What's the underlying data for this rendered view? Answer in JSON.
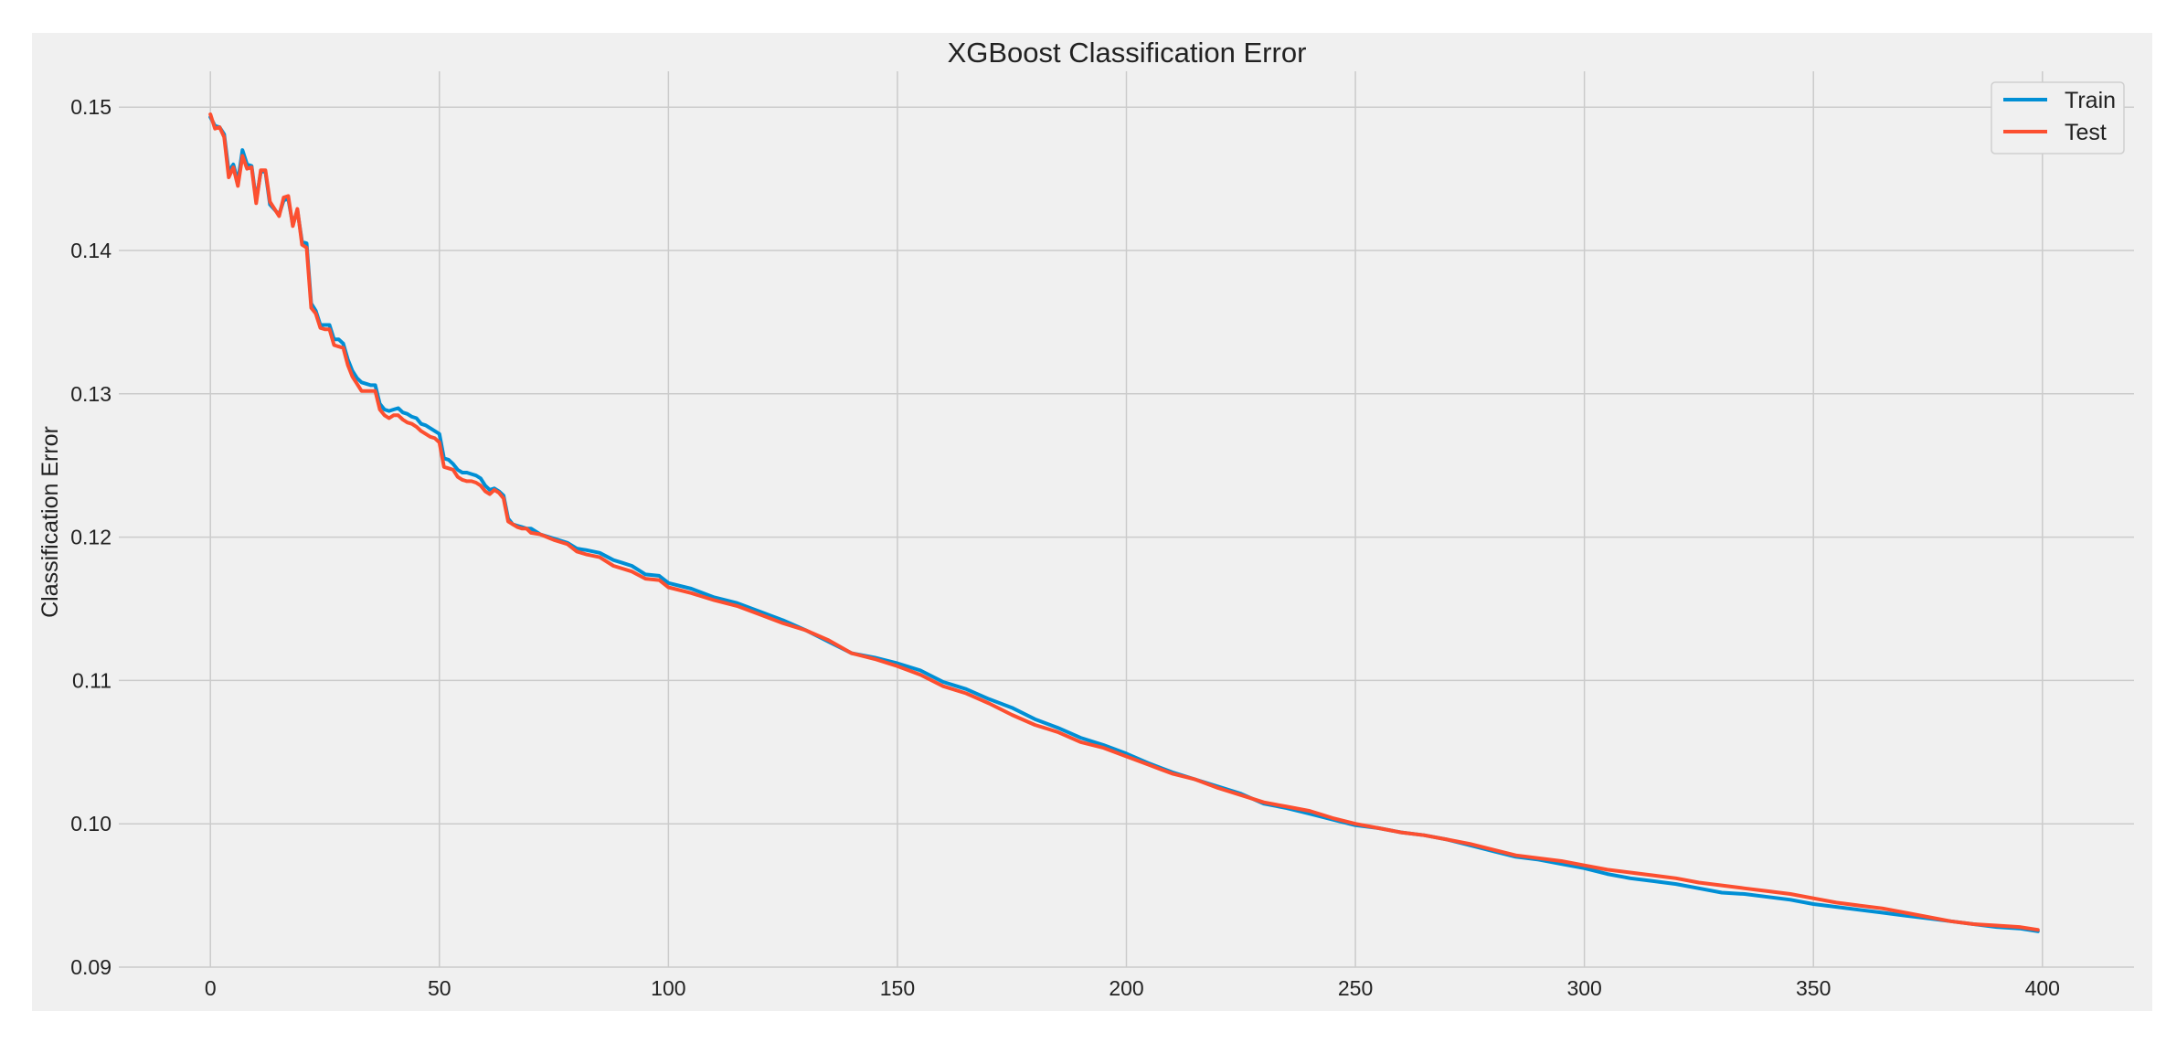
{
  "chart_data": {
    "type": "line",
    "title": "XGBoost Classification Error",
    "xlabel": "",
    "ylabel": "Classification Error",
    "xlim": [
      -20,
      420
    ],
    "ylim": [
      0.09,
      0.1525
    ],
    "x_ticks": [
      0,
      50,
      100,
      150,
      200,
      250,
      300,
      350,
      400
    ],
    "y_ticks": [
      0.09,
      0.1,
      0.11,
      0.12,
      0.13,
      0.14,
      0.15
    ],
    "x_tick_labels": [
      "0",
      "50",
      "100",
      "150",
      "200",
      "250",
      "300",
      "350",
      "400"
    ],
    "y_tick_labels": [
      "0.09",
      "0.10",
      "0.11",
      "0.12",
      "0.13",
      "0.14",
      "0.15"
    ],
    "grid": true,
    "legend_position": "top-right",
    "series": [
      {
        "name": "Train",
        "color": "#008fd5",
        "x": [
          0,
          1,
          2,
          3,
          4,
          5,
          6,
          7,
          8,
          9,
          10,
          11,
          12,
          13,
          15,
          16,
          17,
          18,
          19,
          20,
          21,
          22,
          23,
          24,
          25,
          26,
          27,
          28,
          29,
          30,
          31,
          32,
          33,
          34,
          35,
          36,
          37,
          38,
          39,
          40,
          41,
          42,
          43,
          44,
          45,
          46,
          47,
          48,
          49,
          50,
          51,
          52,
          53,
          54,
          55,
          56,
          57,
          58,
          59,
          60,
          61,
          62,
          63,
          64,
          65,
          66,
          67,
          68,
          69,
          70,
          72,
          75,
          78,
          80,
          82,
          85,
          88,
          90,
          92,
          95,
          98,
          100,
          105,
          110,
          115,
          120,
          125,
          130,
          135,
          140,
          145,
          150,
          155,
          160,
          165,
          170,
          175,
          180,
          185,
          190,
          195,
          200,
          205,
          210,
          215,
          220,
          225,
          230,
          235,
          240,
          245,
          250,
          255,
          260,
          265,
          270,
          275,
          280,
          285,
          290,
          295,
          300,
          305,
          310,
          315,
          320,
          325,
          330,
          335,
          340,
          345,
          350,
          355,
          360,
          365,
          370,
          375,
          380,
          385,
          390,
          395,
          399
        ],
        "y": [
          0.1493,
          0.1487,
          0.1486,
          0.1481,
          0.1455,
          0.146,
          0.1448,
          0.147,
          0.146,
          0.1459,
          0.1435,
          0.1455,
          0.1455,
          0.1432,
          0.1425,
          0.1435,
          0.1436,
          0.1418,
          0.1428,
          0.1406,
          0.1405,
          0.1363,
          0.1358,
          0.1348,
          0.1348,
          0.1348,
          0.1338,
          0.1338,
          0.1335,
          0.1324,
          0.1316,
          0.1311,
          0.1308,
          0.1307,
          0.1306,
          0.1306,
          0.1293,
          0.1289,
          0.1288,
          0.1289,
          0.129,
          0.1287,
          0.1286,
          0.1284,
          0.1283,
          0.1279,
          0.1278,
          0.1276,
          0.1274,
          0.1272,
          0.1255,
          0.1254,
          0.1251,
          0.1247,
          0.1245,
          0.1245,
          0.1244,
          0.1243,
          0.1241,
          0.1236,
          0.1233,
          0.1234,
          0.1232,
          0.1229,
          0.1213,
          0.1209,
          0.1208,
          0.1207,
          0.1206,
          0.1206,
          0.1202,
          0.1199,
          0.1196,
          0.1192,
          0.1191,
          0.1189,
          0.1184,
          0.1182,
          0.118,
          0.1174,
          0.1173,
          0.1168,
          0.1164,
          0.1158,
          0.1154,
          0.1148,
          0.1142,
          0.1135,
          0.1127,
          0.1119,
          0.1116,
          0.1112,
          0.1107,
          0.1099,
          0.1094,
          0.1087,
          0.1081,
          0.1073,
          0.1067,
          0.106,
          0.1055,
          0.1049,
          0.1042,
          0.1036,
          0.1031,
          0.1026,
          0.1021,
          0.1014,
          0.1011,
          0.1007,
          0.1003,
          0.0999,
          0.0997,
          0.0994,
          0.0992,
          0.0989,
          0.0985,
          0.0981,
          0.0977,
          0.0975,
          0.0972,
          0.0969,
          0.0965,
          0.0962,
          0.096,
          0.0958,
          0.0955,
          0.0952,
          0.0951,
          0.0949,
          0.0947,
          0.0944,
          0.0942,
          0.094,
          0.0938,
          0.0936,
          0.0934,
          0.0932,
          0.093,
          0.0928,
          0.0927,
          0.0925
        ]
      },
      {
        "name": "Test",
        "color": "#fc4f30",
        "x": [
          0,
          1,
          2,
          3,
          4,
          5,
          6,
          7,
          8,
          9,
          10,
          11,
          12,
          13,
          15,
          16,
          17,
          18,
          19,
          20,
          21,
          22,
          23,
          24,
          25,
          26,
          27,
          28,
          29,
          30,
          31,
          32,
          33,
          34,
          35,
          36,
          37,
          38,
          39,
          40,
          41,
          42,
          43,
          44,
          45,
          46,
          47,
          48,
          49,
          50,
          51,
          52,
          53,
          54,
          55,
          56,
          57,
          58,
          59,
          60,
          61,
          62,
          63,
          64,
          65,
          66,
          67,
          68,
          69,
          70,
          72,
          75,
          78,
          80,
          82,
          85,
          88,
          90,
          92,
          95,
          98,
          100,
          105,
          110,
          115,
          120,
          125,
          130,
          135,
          140,
          145,
          150,
          155,
          160,
          165,
          170,
          175,
          180,
          185,
          190,
          195,
          200,
          205,
          210,
          215,
          220,
          225,
          230,
          235,
          240,
          245,
          250,
          255,
          260,
          265,
          270,
          275,
          280,
          285,
          290,
          295,
          300,
          305,
          310,
          315,
          320,
          325,
          330,
          335,
          340,
          345,
          350,
          355,
          360,
          365,
          370,
          375,
          380,
          385,
          390,
          395,
          399
        ],
        "y": [
          0.1495,
          0.1485,
          0.1486,
          0.1479,
          0.1451,
          0.1458,
          0.1445,
          0.1466,
          0.1457,
          0.1458,
          0.1433,
          0.1456,
          0.1456,
          0.1434,
          0.1424,
          0.1437,
          0.1438,
          0.1417,
          0.1429,
          0.1404,
          0.1402,
          0.136,
          0.1356,
          0.1346,
          0.1345,
          0.1345,
          0.1334,
          0.1333,
          0.1332,
          0.132,
          0.1312,
          0.1307,
          0.1302,
          0.1302,
          0.1302,
          0.1302,
          0.1289,
          0.1285,
          0.1283,
          0.1285,
          0.1285,
          0.1282,
          0.128,
          0.1279,
          0.1277,
          0.1274,
          0.1272,
          0.127,
          0.1269,
          0.1266,
          0.1249,
          0.1248,
          0.1247,
          0.1242,
          0.124,
          0.1239,
          0.1239,
          0.1238,
          0.1236,
          0.1232,
          0.123,
          0.1233,
          0.1231,
          0.1227,
          0.1211,
          0.1209,
          0.1207,
          0.1206,
          0.1206,
          0.1203,
          0.1202,
          0.1198,
          0.1195,
          0.119,
          0.1188,
          0.1186,
          0.118,
          0.1178,
          0.1176,
          0.1171,
          0.117,
          0.1165,
          0.1161,
          0.1156,
          0.1152,
          0.1146,
          0.114,
          0.1135,
          0.1128,
          0.1119,
          0.1115,
          0.111,
          0.1104,
          0.1096,
          0.1091,
          0.1084,
          0.1076,
          0.1069,
          0.1064,
          0.1057,
          0.1053,
          0.1047,
          0.1041,
          0.1035,
          0.1031,
          0.1025,
          0.102,
          0.1015,
          0.1012,
          0.1009,
          0.1004,
          0.1,
          0.0997,
          0.0994,
          0.0992,
          0.0989,
          0.0986,
          0.0982,
          0.0978,
          0.0976,
          0.0974,
          0.0971,
          0.0968,
          0.0966,
          0.0964,
          0.0962,
          0.0959,
          0.0957,
          0.0955,
          0.0953,
          0.0951,
          0.0948,
          0.0945,
          0.0943,
          0.0941,
          0.0938,
          0.0935,
          0.0932,
          0.093,
          0.0929,
          0.0928,
          0.0926
        ]
      }
    ]
  }
}
